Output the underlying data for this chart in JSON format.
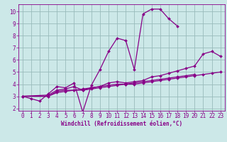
{
  "xlabel": "Windchill (Refroidissement éolien,°C)",
  "background_color": "#cce8e8",
  "line_color": "#880088",
  "grid_color": "#99bbbb",
  "x_values": [
    0,
    1,
    2,
    3,
    4,
    5,
    6,
    7,
    8,
    9,
    10,
    11,
    12,
    13,
    14,
    15,
    16,
    17,
    18,
    19,
    20,
    21,
    22,
    23
  ],
  "series": [
    [
      3.0,
      2.8,
      2.6,
      3.2,
      3.8,
      3.7,
      4.1,
      1.7,
      3.9,
      5.2,
      6.7,
      7.8,
      7.6,
      5.2,
      9.8,
      10.2,
      10.2,
      9.4,
      8.8,
      null,
      null,
      null,
      null,
      null
    ],
    [
      3.0,
      null,
      null,
      3.1,
      3.5,
      3.6,
      3.8,
      3.5,
      3.7,
      3.8,
      4.1,
      4.2,
      4.1,
      4.2,
      4.3,
      4.6,
      4.7,
      4.9,
      5.1,
      5.3,
      5.5,
      6.5,
      6.7,
      6.3
    ],
    [
      3.0,
      null,
      null,
      3.0,
      3.4,
      3.5,
      3.5,
      3.6,
      3.7,
      3.8,
      3.9,
      4.0,
      4.0,
      4.1,
      4.2,
      4.3,
      4.4,
      4.5,
      4.6,
      4.7,
      4.8,
      null,
      null,
      null
    ],
    [
      3.0,
      null,
      null,
      3.0,
      3.3,
      3.4,
      3.5,
      3.5,
      3.6,
      3.7,
      3.8,
      3.9,
      4.0,
      4.0,
      4.1,
      4.2,
      4.3,
      4.4,
      4.5,
      4.6,
      4.7,
      4.8,
      4.9,
      5.0
    ]
  ],
  "xlim": [
    -0.5,
    23.5
  ],
  "ylim": [
    1.8,
    10.6
  ],
  "yticks": [
    2,
    3,
    4,
    5,
    6,
    7,
    8,
    9,
    10
  ],
  "xticks": [
    0,
    1,
    2,
    3,
    4,
    5,
    6,
    7,
    8,
    9,
    10,
    11,
    12,
    13,
    14,
    15,
    16,
    17,
    18,
    19,
    20,
    21,
    22,
    23
  ],
  "tick_fontsize": 5.5,
  "xlabel_fontsize": 5.5,
  "marker_size": 2.0,
  "line_width": 0.9
}
